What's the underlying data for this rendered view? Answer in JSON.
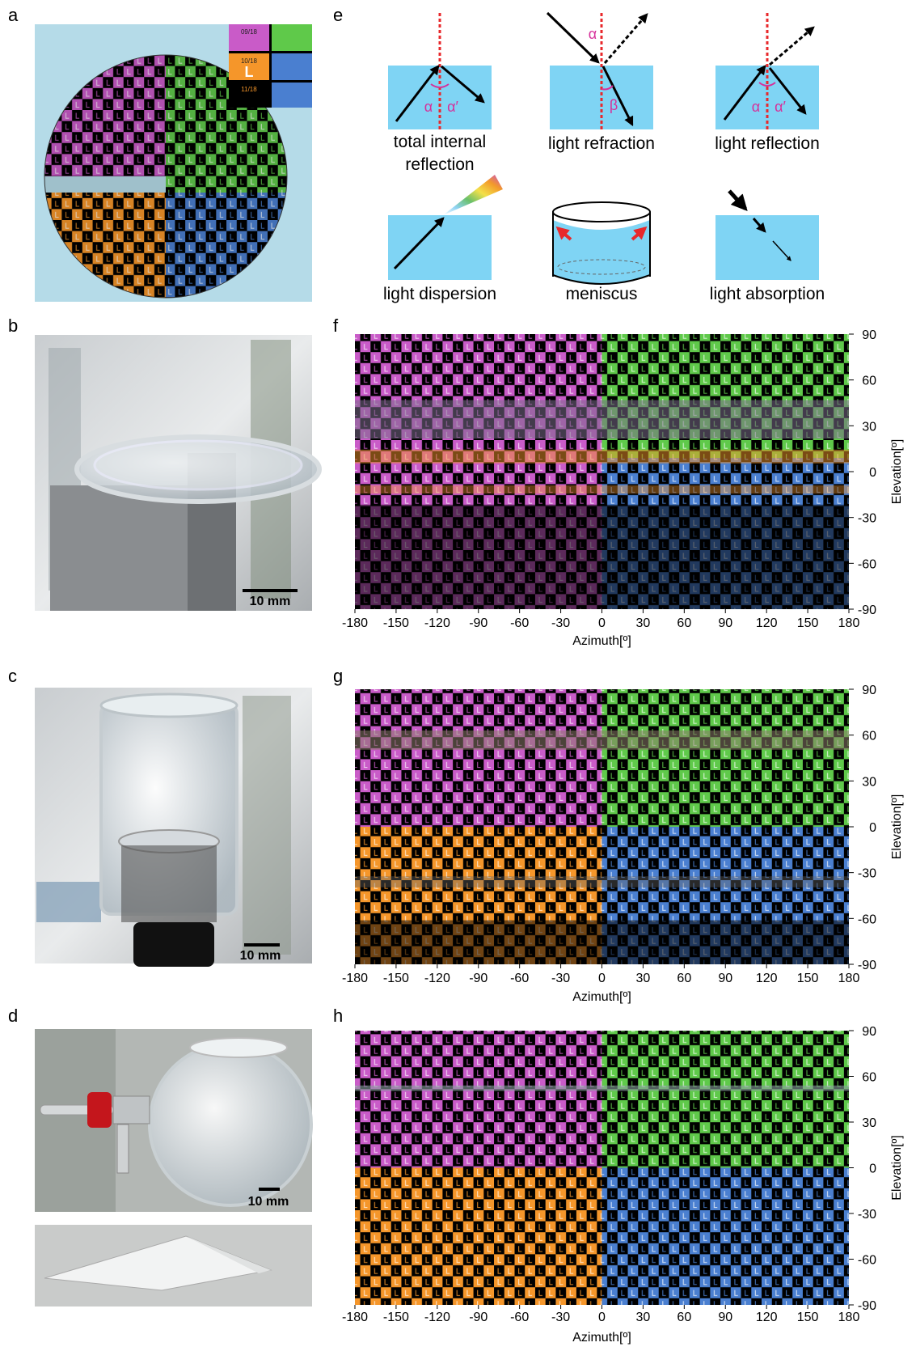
{
  "panel_labels": [
    "a",
    "b",
    "c",
    "d",
    "e",
    "f",
    "g",
    "h"
  ],
  "sphere_inset_labels": [
    "09/18",
    "10/18",
    "11/18"
  ],
  "scale_bar_label": "10 mm",
  "effects": [
    "total internal reflection",
    "light refraction",
    "light reflection",
    "light dispersion",
    "meniscus",
    "light absorption"
  ],
  "angle_symbols": {
    "alpha": "α",
    "alpha_prime": "α′",
    "beta": "β"
  },
  "map_axes": {
    "x_label": "Azimuth[º]",
    "y_label": "Elevation[º]",
    "xlim": [
      -180,
      180
    ],
    "ylim": [
      -90,
      90
    ],
    "xticks": [
      -180,
      -150,
      -120,
      -90,
      -60,
      -30,
      0,
      30,
      60,
      90,
      120,
      150,
      180
    ],
    "yticks": [
      90,
      60,
      30,
      0,
      -30,
      -60,
      -90
    ]
  }
}
